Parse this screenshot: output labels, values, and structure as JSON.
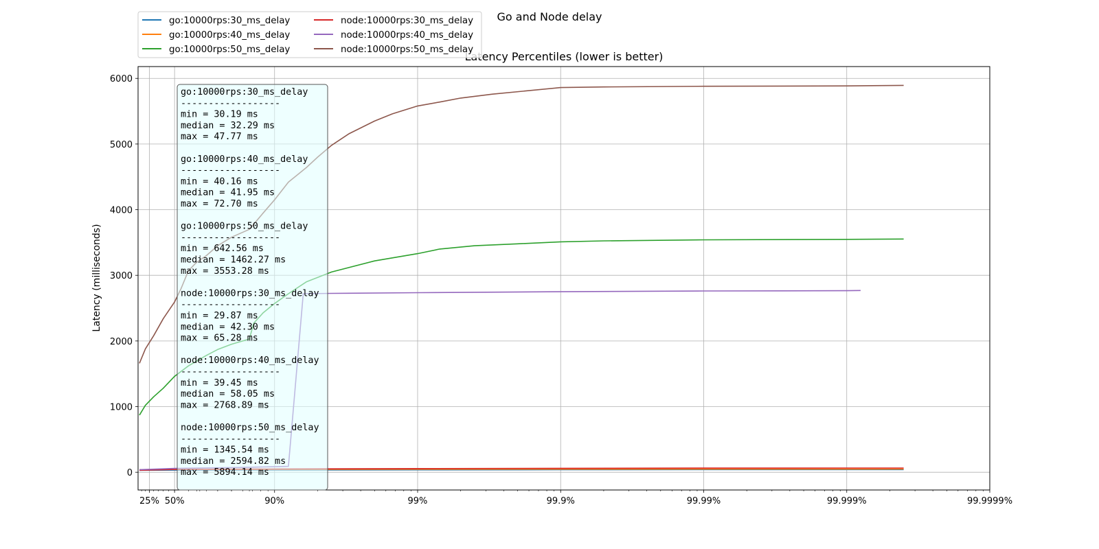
{
  "suptitle": "Go and Node delay",
  "chart_data": {
    "type": "line",
    "title": "Latency Percentiles (lower is better)",
    "xlabel": "",
    "ylabel": "Latency (milliseconds)",
    "x_scale": "log of 1/(1-percentile)",
    "xlim_percentile": [
      10,
      99.9999
    ],
    "ylim": [
      -270,
      6180
    ],
    "grid": true,
    "legend_position": "upper-left, outside above axes, 2 columns",
    "x_ticks": [
      {
        "p": 25,
        "label": "25%"
      },
      {
        "p": 50,
        "label": "50%"
      },
      {
        "p": 90,
        "label": "90%"
      },
      {
        "p": 99,
        "label": "99%"
      },
      {
        "p": 99.9,
        "label": "99.9%"
      },
      {
        "p": 99.99,
        "label": "99.99%"
      },
      {
        "p": 99.999,
        "label": "99.999%"
      },
      {
        "p": 99.9999,
        "label": "99.9999%"
      }
    ],
    "y_ticks": [
      0,
      1000,
      2000,
      3000,
      4000,
      5000,
      6000
    ],
    "series": [
      {
        "name": "go:10000rps:30_ms_delay",
        "color": "#1f77b4",
        "points": [
          [
            0,
            30.2
          ],
          [
            50,
            32.3
          ],
          [
            90,
            34
          ],
          [
            99,
            36
          ],
          [
            99.9,
            38
          ],
          [
            99.99,
            40
          ],
          [
            99.9996,
            41
          ]
        ]
      },
      {
        "name": "go:10000rps:40_ms_delay",
        "color": "#ff7f0e",
        "points": [
          [
            0,
            40.2
          ],
          [
            50,
            42.0
          ],
          [
            90,
            44
          ],
          [
            99,
            46
          ],
          [
            99.9,
            47
          ],
          [
            99.99,
            48
          ],
          [
            99.9996,
            49
          ]
        ]
      },
      {
        "name": "go:10000rps:50_ms_delay",
        "color": "#2ca02c",
        "points": [
          [
            0,
            870
          ],
          [
            20,
            1020
          ],
          [
            30,
            1150
          ],
          [
            40,
            1280
          ],
          [
            50,
            1462
          ],
          [
            60,
            1620
          ],
          [
            70,
            1780
          ],
          [
            75,
            1870
          ],
          [
            80,
            1950
          ],
          [
            85,
            2030
          ],
          [
            86,
            2270
          ],
          [
            88,
            2430
          ],
          [
            90,
            2570
          ],
          [
            92,
            2720
          ],
          [
            94,
            2900
          ],
          [
            96,
            3050
          ],
          [
            98,
            3220
          ],
          [
            99,
            3330
          ],
          [
            99.3,
            3400
          ],
          [
            99.6,
            3450
          ],
          [
            99.8,
            3480
          ],
          [
            99.9,
            3510
          ],
          [
            99.95,
            3525
          ],
          [
            99.99,
            3540
          ],
          [
            99.999,
            3548
          ],
          [
            99.9996,
            3553
          ]
        ]
      },
      {
        "name": "node:10000rps:30_ms_delay",
        "color": "#d62728",
        "points": [
          [
            0,
            29.9
          ],
          [
            50,
            42.3
          ],
          [
            90,
            50
          ],
          [
            99,
            56
          ],
          [
            99.9,
            60
          ],
          [
            99.99,
            63
          ],
          [
            99.999,
            64
          ],
          [
            99.9996,
            65
          ]
        ]
      },
      {
        "name": "node:10000rps:40_ms_delay",
        "color": "#9467bd",
        "points": [
          [
            0,
            39.5
          ],
          [
            50,
            58.1
          ],
          [
            75,
            68
          ],
          [
            85,
            76
          ],
          [
            90,
            84
          ],
          [
            92,
            90
          ],
          [
            93.7,
            2720
          ],
          [
            96,
            2725
          ],
          [
            99,
            2735
          ],
          [
            99.9,
            2750
          ],
          [
            99.99,
            2762
          ],
          [
            99.999,
            2766
          ],
          [
            99.9992,
            2769
          ]
        ]
      },
      {
        "name": "node:10000rps:50_ms_delay",
        "color": "#8c564b",
        "points": [
          [
            0,
            1660
          ],
          [
            20,
            1880
          ],
          [
            30,
            2080
          ],
          [
            40,
            2340
          ],
          [
            50,
            2595
          ],
          [
            55,
            2800
          ],
          [
            60,
            3070
          ],
          [
            65,
            3200
          ],
          [
            70,
            3300
          ],
          [
            75,
            3450
          ],
          [
            80,
            3580
          ],
          [
            85,
            3700
          ],
          [
            88,
            3950
          ],
          [
            90,
            4150
          ],
          [
            92,
            4420
          ],
          [
            94,
            4640
          ],
          [
            95,
            4800
          ],
          [
            96,
            4980
          ],
          [
            97,
            5160
          ],
          [
            98,
            5350
          ],
          [
            98.5,
            5460
          ],
          [
            99,
            5580
          ],
          [
            99.3,
            5640
          ],
          [
            99.5,
            5700
          ],
          [
            99.7,
            5760
          ],
          [
            99.9,
            5860
          ],
          [
            99.95,
            5870
          ],
          [
            99.99,
            5880
          ],
          [
            99.999,
            5885
          ],
          [
            99.9996,
            5894
          ]
        ]
      }
    ],
    "stats_box": [
      {
        "name": "go:10000rps:30_ms_delay",
        "sep": "------------------",
        "min": "min    =  30.19 ms",
        "median": "median =  32.29 ms",
        "max": "max    =  47.77 ms"
      },
      {
        "name": "go:10000rps:40_ms_delay",
        "sep": "------------------",
        "min": "min    =  40.16 ms",
        "median": "median =  41.95 ms",
        "max": "max    =  72.70 ms"
      },
      {
        "name": "go:10000rps:50_ms_delay",
        "sep": "------------------",
        "min": "min    = 642.56 ms",
        "median": "median = 1462.27 ms",
        "max": "max    = 3553.28 ms"
      },
      {
        "name": "node:10000rps:30_ms_delay",
        "sep": "------------------",
        "min": "min    =  29.87 ms",
        "median": "median =  42.30 ms",
        "max": "max    =  65.28 ms"
      },
      {
        "name": "node:10000rps:40_ms_delay",
        "sep": "------------------",
        "min": "min    =  39.45 ms",
        "median": "median =  58.05 ms",
        "max": "max    = 2768.89 ms"
      },
      {
        "name": "node:10000rps:50_ms_delay",
        "sep": "------------------",
        "min": "min    = 1345.54 ms",
        "median": "median = 2594.82 ms",
        "max": "max    = 5894.14 ms"
      }
    ]
  }
}
